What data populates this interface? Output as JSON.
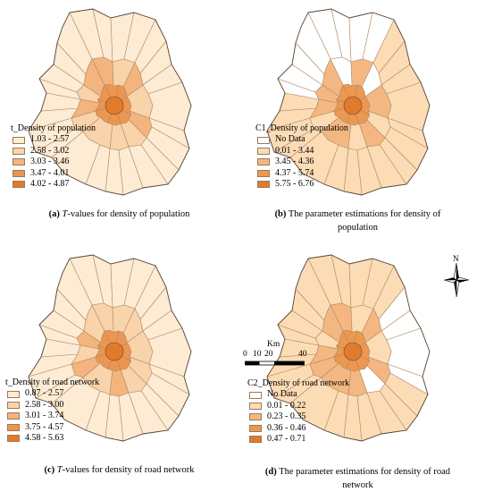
{
  "panels": [
    {
      "id": "a",
      "legend_title": "t_Density of population",
      "classes": [
        {
          "label": "1.03 - 2.57",
          "color": "#fdebd4"
        },
        {
          "label": "2.58 - 3.02",
          "color": "#f9d3a9"
        },
        {
          "label": "3.03 - 3.46",
          "color": "#f3b47d"
        },
        {
          "label": "3.47 - 4.01",
          "color": "#ec9650"
        },
        {
          "label": "4.02 - 4.87",
          "color": "#e27a2c"
        }
      ],
      "caption_letter": "(a)",
      "caption_italic": "T",
      "caption_text": "-values for density of population"
    },
    {
      "id": "b",
      "legend_title": "C1_Density of population",
      "classes": [
        {
          "label": "No Data",
          "color": "#ffffff"
        },
        {
          "label": "0.01 - 3.44",
          "color": "#fbdcb5"
        },
        {
          "label": "3.45 - 4.36",
          "color": "#f4b781"
        },
        {
          "label": "4.37 - 5.74",
          "color": "#ec9850"
        },
        {
          "label": "5.75 - 6.76",
          "color": "#e27a2c"
        }
      ],
      "caption_letter": "(b)",
      "caption_line1": "The parameter estimations for density of",
      "caption_line2": "population"
    },
    {
      "id": "c",
      "legend_title": "t_Density of road network",
      "classes": [
        {
          "label": "0.87 - 2.57",
          "color": "#fdebd4"
        },
        {
          "label": "2.58 - 3.00",
          "color": "#f9d3a9"
        },
        {
          "label": "3.01 - 3.74",
          "color": "#f3b47d"
        },
        {
          "label": "3.75 - 4.57",
          "color": "#ec9650"
        },
        {
          "label": "4.58 - 5.63",
          "color": "#e27a2c"
        }
      ],
      "caption_letter": "(c)",
      "caption_italic": "T",
      "caption_text": "-values for density of road network"
    },
    {
      "id": "d",
      "legend_title": "C2_Density of road network",
      "classes": [
        {
          "label": "No Data",
          "color": "#ffffff"
        },
        {
          "label": "0.01 - 0.22",
          "color": "#fbdcb5"
        },
        {
          "label": "0.23 - 0.35",
          "color": "#f4b781"
        },
        {
          "label": "0.36 - 0.46",
          "color": "#ec9850"
        },
        {
          "label": "0.47 - 0.71",
          "color": "#e27a2c"
        }
      ],
      "caption_letter": "(d)",
      "caption_line1": "The parameter estimations for density of road",
      "caption_line2": "network"
    }
  ],
  "scale_bar": {
    "unit": "Km",
    "ticks": [
      "0",
      "10",
      "20",
      "40"
    ]
  },
  "north_arrow": {
    "label": "N",
    "icon": "north-arrow-icon"
  },
  "colors": {
    "border": "#b08a66",
    "outline": "#5a4636"
  }
}
